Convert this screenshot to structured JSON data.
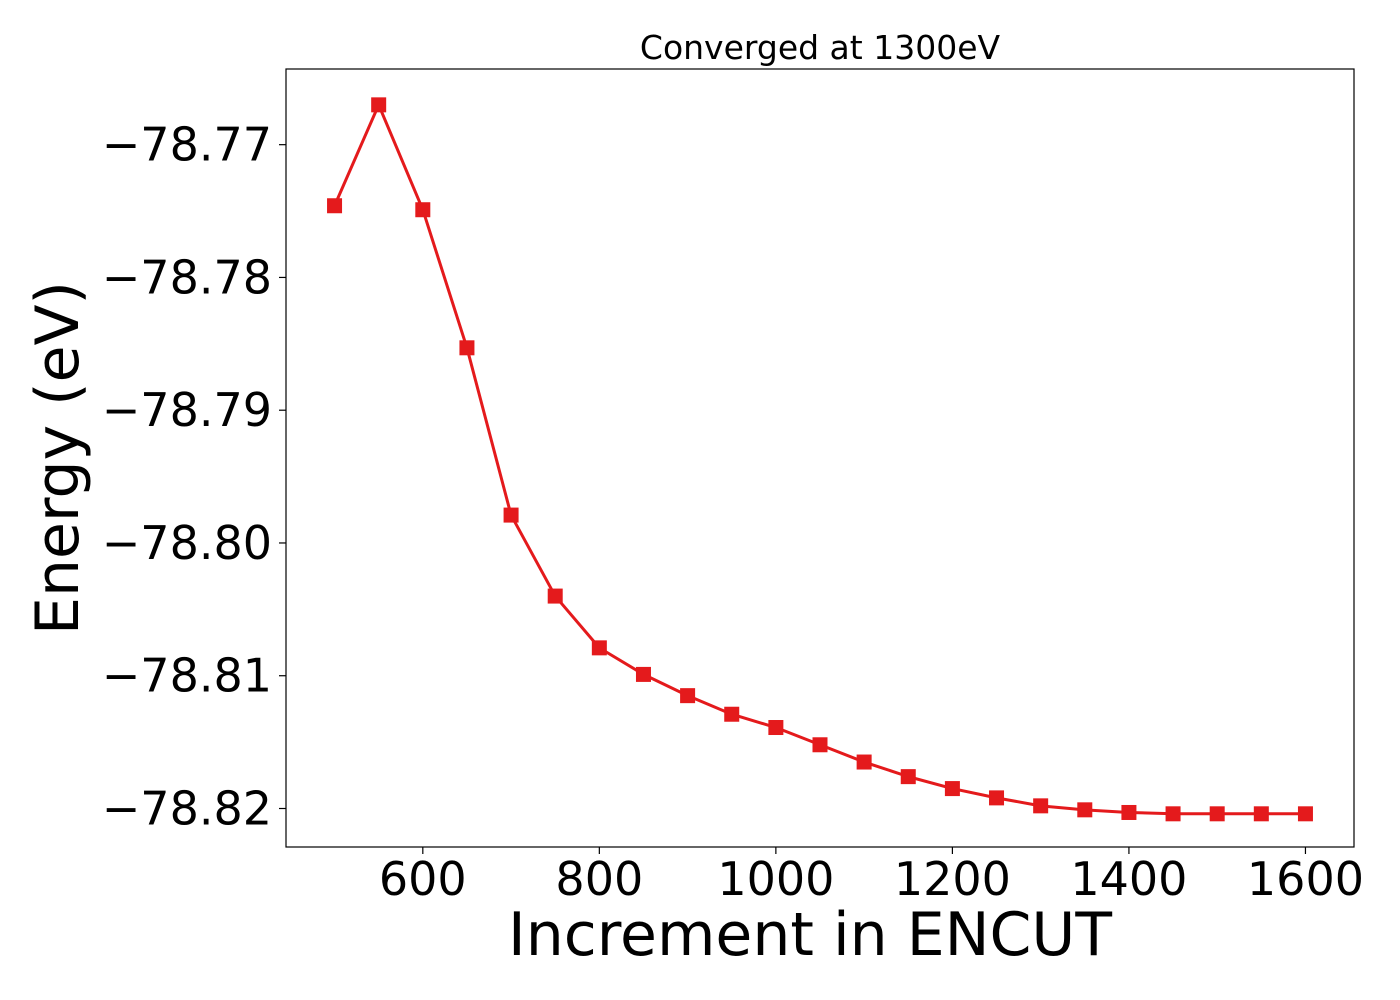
{
  "chart_data": {
    "type": "line",
    "title": "Converged at 1300eV",
    "xlabel": "Increment in ENCUT",
    "ylabel": "Energy (eV)",
    "xlim": [
      445,
      1655
    ],
    "ylim": [
      -78.8229,
      -78.7643
    ],
    "x_ticks": [
      600,
      800,
      1000,
      1200,
      1400,
      1600
    ],
    "x_tick_labels": [
      "600",
      "800",
      "1000",
      "1200",
      "1400",
      "1600"
    ],
    "y_ticks": [
      -78.77,
      -78.78,
      -78.79,
      -78.8,
      -78.81,
      -78.82
    ],
    "y_tick_labels": [
      "−78.77",
      "−78.78",
      "−78.79",
      "−78.80",
      "−78.81",
      "−78.82"
    ],
    "grid": false,
    "series": [
      {
        "marker": "square",
        "color": "#e41a1c",
        "x": [
          500,
          550,
          600,
          650,
          700,
          750,
          800,
          850,
          900,
          950,
          1000,
          1050,
          1100,
          1150,
          1200,
          1250,
          1300,
          1350,
          1400,
          1450,
          1500,
          1550,
          1600
        ],
        "y": [
          -78.7746,
          -78.767,
          -78.7749,
          -78.7853,
          -78.7979,
          -78.804,
          -78.8079,
          -78.8099,
          -78.8115,
          -78.8129,
          -78.8139,
          -78.8152,
          -78.8165,
          -78.8176,
          -78.8185,
          -78.8192,
          -78.8198,
          -78.8201,
          -78.8203,
          -78.8204,
          -78.8204,
          -78.8204,
          -78.8204
        ]
      }
    ]
  }
}
